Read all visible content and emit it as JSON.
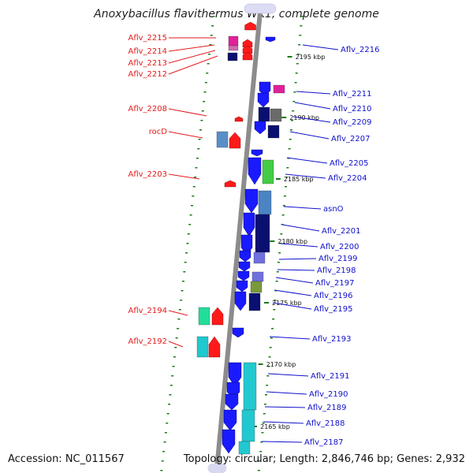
{
  "title": "Anoxybacillus flavithermus WK1, complete genome",
  "accession": "Accession: NC_011567",
  "topology": "Topology: circular; Length: 2,846,746 bp; Genes: 2,932",
  "colors": {
    "red_label": "#e41a1c",
    "blue_label": "#1010cc",
    "backbone": "#8a8a8a",
    "tick": "#1a7a1a"
  },
  "kbp_marks": [
    "2195 kbp",
    "2190 kbp",
    "2185 kbp",
    "2180 kbp",
    "2175 kbp",
    "2170 kbp",
    "2165 kbp"
  ],
  "left_labels": [
    "Aflv_2215",
    "Aflv_2214",
    "Aflv_2213",
    "Aflv_2212",
    "Aflv_2208",
    "rocD",
    "Aflv_2203",
    "Aflv_2194",
    "Aflv_2192"
  ],
  "right_labels": [
    "Aflv_2216",
    "Aflv_2211",
    "Aflv_2210",
    "Aflv_2209",
    "Aflv_2207",
    "Aflv_2205",
    "Aflv_2204",
    "asnO",
    "Aflv_2201",
    "Aflv_2200",
    "Aflv_2199",
    "Aflv_2198",
    "Aflv_2197",
    "Aflv_2196",
    "Aflv_2195",
    "Aflv_2193",
    "Aflv_2191",
    "Aflv_2190",
    "Aflv_2189",
    "Aflv_2188",
    "Aflv_2187"
  ]
}
